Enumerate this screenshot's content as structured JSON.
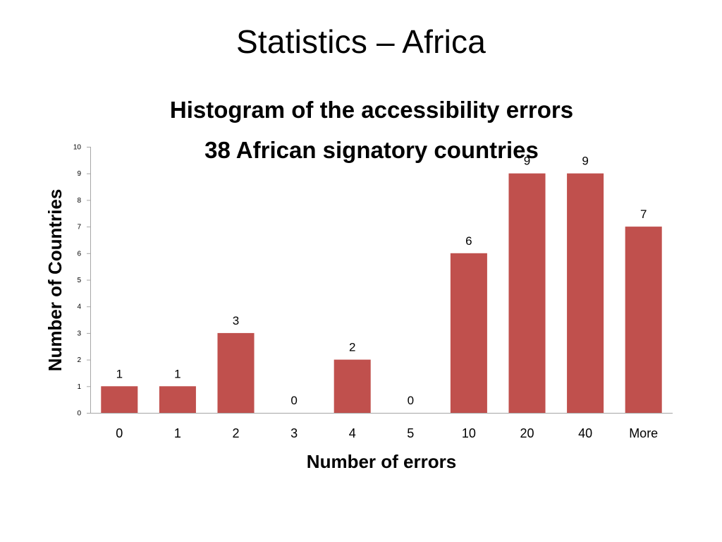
{
  "slide": {
    "title": "Statistics – Africa"
  },
  "chart_data": {
    "type": "bar",
    "title_lines": [
      "Histogram of the accessibility errors",
      "38 African signatory countries"
    ],
    "xlabel": "Number of errors",
    "ylabel": "Number of Countries",
    "categories": [
      "0",
      "1",
      "2",
      "3",
      "4",
      "5",
      "10",
      "20",
      "40",
      "More"
    ],
    "values": [
      1,
      1,
      3,
      0,
      2,
      0,
      6,
      9,
      9,
      7
    ],
    "ylim": [
      0,
      10
    ],
    "yticks": [
      0,
      1,
      2,
      3,
      4,
      5,
      6,
      7,
      8,
      9,
      10
    ],
    "bar_color": "#c0504d",
    "axis_color": "#a6a6a6",
    "grid": false,
    "legend": false,
    "data_labels": true
  }
}
